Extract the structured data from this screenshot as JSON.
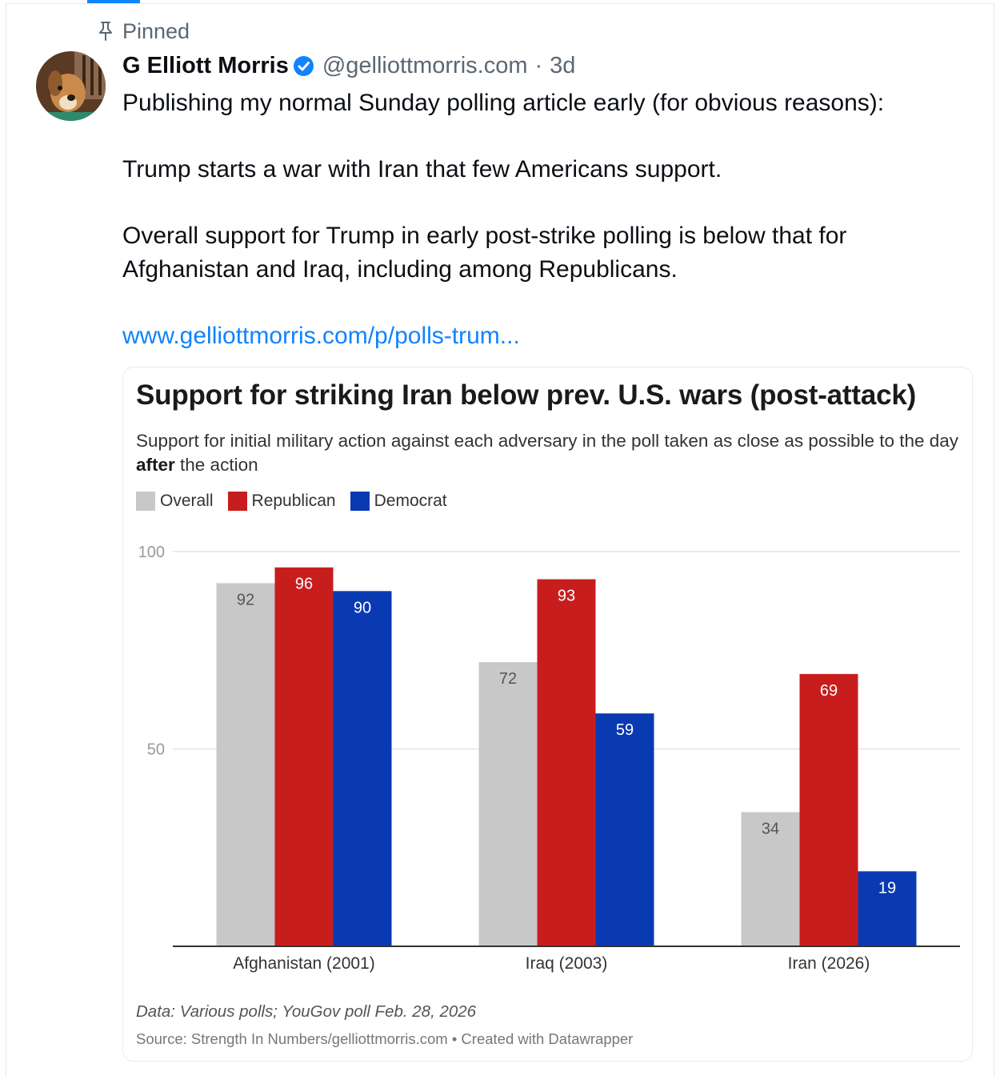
{
  "post": {
    "pinned_label": "Pinned",
    "author": {
      "name": "G Elliott Morris",
      "handle": "@gelliottmorris.com",
      "time_separator": "·",
      "time": "3d"
    },
    "text": {
      "line1": "Publishing my normal Sunday polling article early (for obvious reasons):",
      "line2": "Trump starts a war with Iran that few Americans support.",
      "line3": "Overall support for Trump in early post-strike polling is below that for Afghanistan and Iraq, including among Republicans.",
      "link": "www.gelliottmorris.com/p/polls-trum..."
    },
    "colors": {
      "link": "#1083fe",
      "verified": "#1083fe",
      "accent": "#1083fe"
    }
  },
  "embed": {
    "subtitle_part1": "Support for initial military action against each adversary in the poll taken as close as possible to the day ",
    "subtitle_bold": "after",
    "subtitle_part2": " the action",
    "notes": "Data: Various polls; YouGov poll Feb. 28, 2026",
    "source": "Source: Strength In Numbers/gelliottmorris.com • Created with Datawrapper"
  },
  "chart_data": {
    "type": "bar",
    "title": "Support for striking Iran below prev. U.S. wars (post-attack)",
    "categories": [
      "Afghanistan (2001)",
      "Iraq (2003)",
      "Iran (2026)"
    ],
    "series": [
      {
        "name": "Overall",
        "color": "#c8c8c8",
        "values": [
          92,
          72,
          34
        ]
      },
      {
        "name": "Republican",
        "color": "#c71e1d",
        "values": [
          96,
          93,
          69
        ]
      },
      {
        "name": "Democrat",
        "color": "#0a3ab2",
        "values": [
          90,
          59,
          19
        ]
      }
    ],
    "ylim": [
      0,
      100
    ],
    "yticks": [
      50,
      100
    ],
    "grid": true,
    "legend": "top-left",
    "xlabel": "",
    "ylabel": ""
  }
}
